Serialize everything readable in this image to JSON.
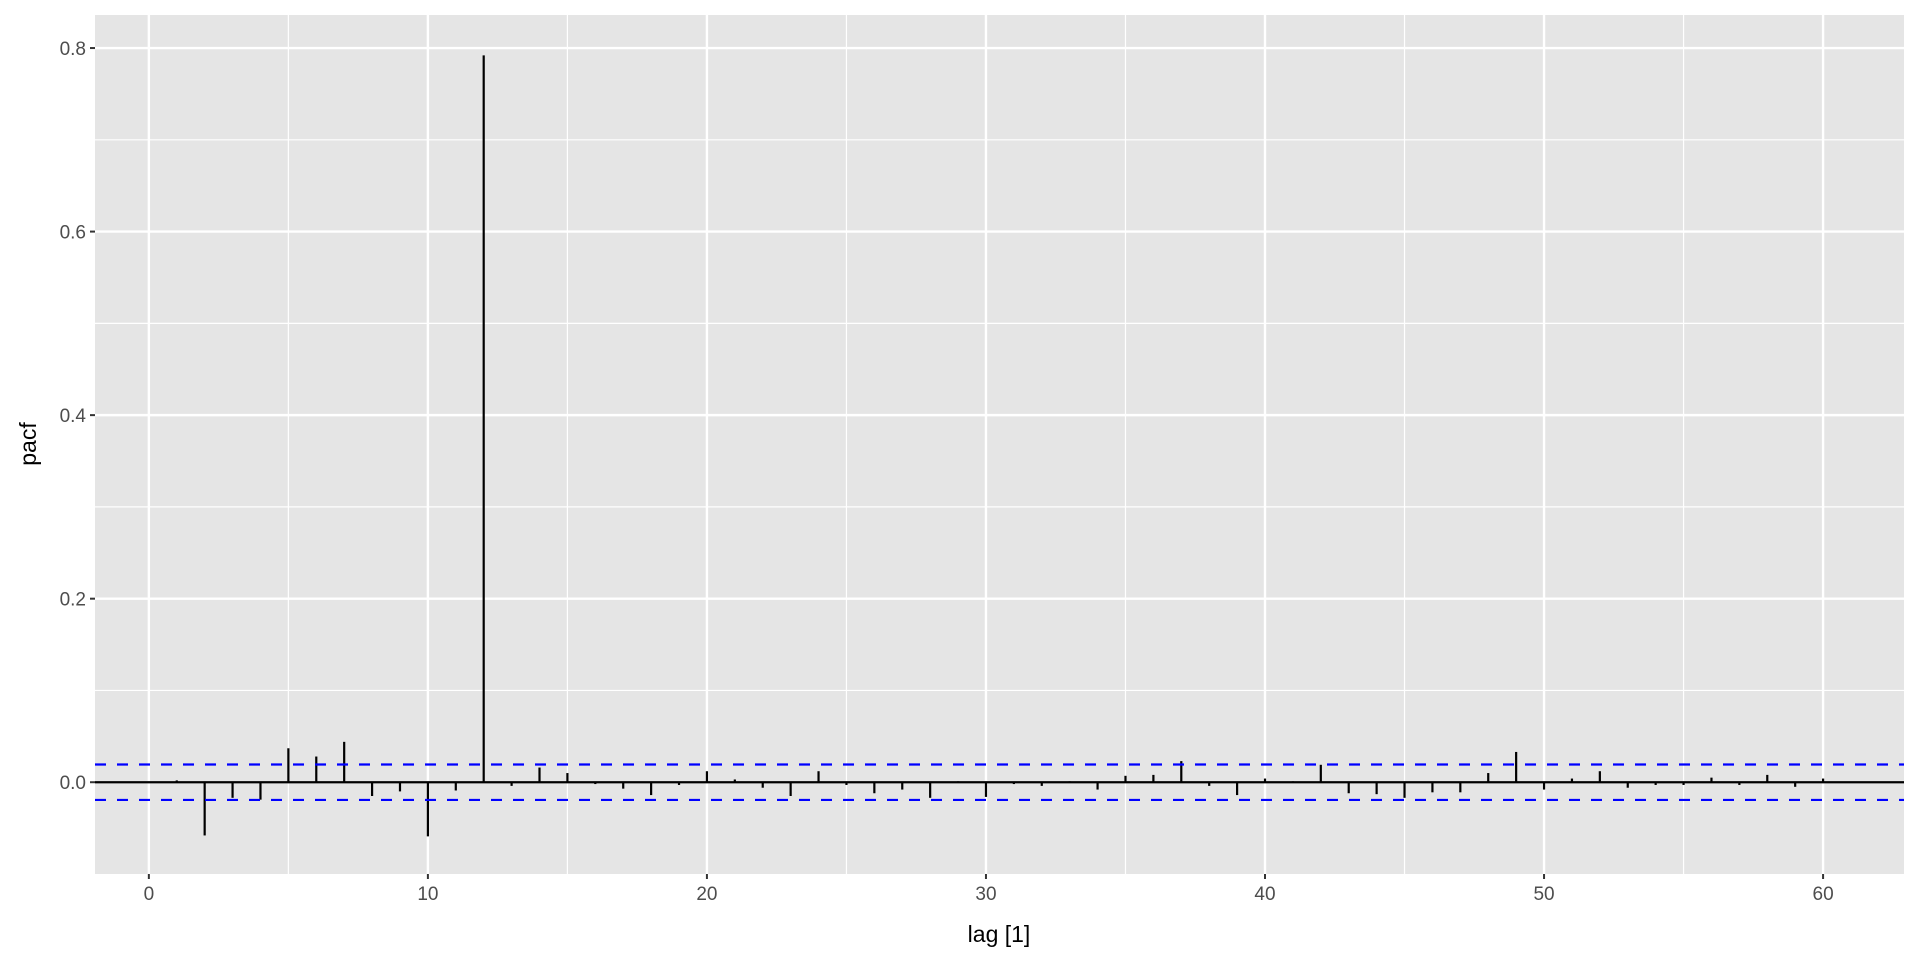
{
  "chart_data": {
    "type": "bar",
    "title": "",
    "xlabel": "lag [1]",
    "ylabel": "pacf",
    "xlim": [
      -1.93,
      62.9
    ],
    "ylim": [
      -0.1,
      0.836
    ],
    "x_ticks": [
      0,
      10,
      20,
      30,
      40,
      50,
      60
    ],
    "x_tick_labels": [
      "0",
      "10",
      "20",
      "30",
      "40",
      "50",
      "60"
    ],
    "y_ticks": [
      0.0,
      0.2,
      0.4,
      0.6,
      0.8
    ],
    "y_tick_labels": [
      "0.0",
      "0.2",
      "0.4",
      "0.6",
      "0.8"
    ],
    "grid": true,
    "confidence_bounds": [
      -0.0193,
      0.0193
    ],
    "lags": [
      1,
      2,
      3,
      4,
      5,
      6,
      7,
      8,
      9,
      10,
      11,
      12,
      13,
      14,
      15,
      16,
      17,
      18,
      19,
      20,
      21,
      22,
      23,
      24,
      25,
      26,
      27,
      28,
      29,
      30,
      31,
      32,
      33,
      34,
      35,
      36,
      37,
      38,
      39,
      40,
      41,
      42,
      43,
      44,
      45,
      46,
      47,
      48,
      49,
      50,
      51,
      52,
      53,
      54,
      55,
      56,
      57,
      58,
      59,
      60
    ],
    "values": [
      0.002,
      -0.058,
      -0.017,
      -0.019,
      0.037,
      0.028,
      0.044,
      -0.015,
      -0.01,
      -0.059,
      -0.009,
      0.792,
      -0.004,
      0.016,
      0.01,
      -0.002,
      -0.007,
      -0.014,
      -0.003,
      0.012,
      0.003,
      -0.006,
      -0.015,
      0.012,
      -0.003,
      -0.012,
      -0.008,
      -0.017,
      0.001,
      -0.016,
      -0.002,
      -0.004,
      0.001,
      -0.008,
      0.007,
      0.008,
      0.023,
      -0.004,
      -0.014,
      0.004,
      0.001,
      0.019,
      -0.012,
      -0.013,
      -0.017,
      -0.011,
      -0.011,
      0.01,
      0.033,
      -0.008,
      0.004,
      0.012,
      -0.006,
      -0.003,
      -0.003,
      0.005,
      -0.003,
      0.008,
      -0.005,
      0.004
    ],
    "colors": {
      "panel": "#e5e5e5",
      "grid": "#ffffff",
      "bars": "#000000",
      "bounds": "#0000ff"
    }
  }
}
